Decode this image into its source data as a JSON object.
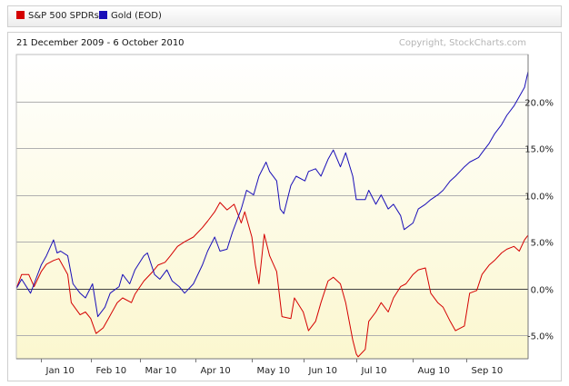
{
  "legend": {
    "items": [
      {
        "label": "S&P 500 SPDRs",
        "color": "#d40000"
      },
      {
        "label": "Gold (EOD)",
        "color": "#1a0fb8"
      }
    ]
  },
  "chart_data": {
    "type": "line",
    "subtitle": "21 December 2009 - 6 October 2010",
    "copyright": "Copyright, StockCharts.com",
    "ylim": [
      -7.5,
      25
    ],
    "grid": true,
    "legend_position": "top-left",
    "y_ticks": [
      {
        "value": 20,
        "label": "20.0%"
      },
      {
        "value": 15,
        "label": "15.0%"
      },
      {
        "value": 10,
        "label": "10.0%"
      },
      {
        "value": 5,
        "label": "5.0%"
      },
      {
        "value": 0,
        "label": "0.0%"
      },
      {
        "value": -5,
        "label": "-5.0%"
      }
    ],
    "x_range": [
      "2009-12-21",
      "2010-10-06"
    ],
    "x_ticks": [
      {
        "date": "2010-01-04",
        "label": "Jan 10"
      },
      {
        "date": "2010-02-01",
        "label": "Feb 10"
      },
      {
        "date": "2010-03-01",
        "label": "Mar 10"
      },
      {
        "date": "2010-04-01",
        "label": "Apr 10"
      },
      {
        "date": "2010-05-03",
        "label": "May 10"
      },
      {
        "date": "2010-06-01",
        "label": "Jun 10"
      },
      {
        "date": "2010-07-01",
        "label": "Jul 10"
      },
      {
        "date": "2010-08-02",
        "label": "Aug 10"
      },
      {
        "date": "2010-09-01",
        "label": "Sep 10"
      }
    ],
    "series": [
      {
        "name": "S&P 500 SPDRs",
        "color": "#d40000",
        "points": [
          [
            "2009-12-21",
            0.0
          ],
          [
            "2009-12-24",
            1.5
          ],
          [
            "2009-12-28",
            1.5
          ],
          [
            "2009-12-31",
            0.2
          ],
          [
            "2010-01-04",
            1.8
          ],
          [
            "2010-01-07",
            2.6
          ],
          [
            "2010-01-11",
            3.0
          ],
          [
            "2010-01-14",
            3.2
          ],
          [
            "2010-01-19",
            1.5
          ],
          [
            "2010-01-21",
            -1.5
          ],
          [
            "2010-01-26",
            -2.8
          ],
          [
            "2010-01-29",
            -2.5
          ],
          [
            "2010-02-01",
            -3.2
          ],
          [
            "2010-02-04",
            -4.8
          ],
          [
            "2010-02-08",
            -4.2
          ],
          [
            "2010-02-11",
            -3.2
          ],
          [
            "2010-02-16",
            -1.5
          ],
          [
            "2010-02-19",
            -1.0
          ],
          [
            "2010-02-24",
            -1.5
          ],
          [
            "2010-02-26",
            -0.6
          ],
          [
            "2010-03-03",
            0.8
          ],
          [
            "2010-03-08",
            1.8
          ],
          [
            "2010-03-11",
            2.5
          ],
          [
            "2010-03-15",
            2.8
          ],
          [
            "2010-03-18",
            3.5
          ],
          [
            "2010-03-22",
            4.5
          ],
          [
            "2010-03-26",
            5.0
          ],
          [
            "2010-03-31",
            5.5
          ],
          [
            "2010-04-05",
            6.5
          ],
          [
            "2010-04-08",
            7.2
          ],
          [
            "2010-04-12",
            8.2
          ],
          [
            "2010-04-15",
            9.2
          ],
          [
            "2010-04-19",
            8.4
          ],
          [
            "2010-04-23",
            9.0
          ],
          [
            "2010-04-27",
            7.0
          ],
          [
            "2010-04-29",
            8.2
          ],
          [
            "2010-05-03",
            5.5
          ],
          [
            "2010-05-05",
            2.5
          ],
          [
            "2010-05-07",
            0.5
          ],
          [
            "2010-05-10",
            5.8
          ],
          [
            "2010-05-13",
            3.5
          ],
          [
            "2010-05-17",
            1.8
          ],
          [
            "2010-05-20",
            -3.0
          ],
          [
            "2010-05-25",
            -3.2
          ],
          [
            "2010-05-27",
            -1.0
          ],
          [
            "2010-06-01",
            -2.5
          ],
          [
            "2010-06-04",
            -4.5
          ],
          [
            "2010-06-08",
            -3.5
          ],
          [
            "2010-06-11",
            -1.5
          ],
          [
            "2010-06-15",
            0.8
          ],
          [
            "2010-06-18",
            1.2
          ],
          [
            "2010-06-22",
            0.5
          ],
          [
            "2010-06-25",
            -1.5
          ],
          [
            "2010-06-29",
            -5.5
          ],
          [
            "2010-07-01",
            -7.0
          ],
          [
            "2010-07-02",
            -7.3
          ],
          [
            "2010-07-06",
            -6.5
          ],
          [
            "2010-07-08",
            -3.5
          ],
          [
            "2010-07-12",
            -2.5
          ],
          [
            "2010-07-15",
            -1.5
          ],
          [
            "2010-07-19",
            -2.5
          ],
          [
            "2010-07-22",
            -1.0
          ],
          [
            "2010-07-26",
            0.2
          ],
          [
            "2010-07-29",
            0.5
          ],
          [
            "2010-08-02",
            1.5
          ],
          [
            "2010-08-05",
            2.0
          ],
          [
            "2010-08-09",
            2.2
          ],
          [
            "2010-08-12",
            -0.5
          ],
          [
            "2010-08-16",
            -1.5
          ],
          [
            "2010-08-19",
            -2.0
          ],
          [
            "2010-08-23",
            -3.5
          ],
          [
            "2010-08-26",
            -4.5
          ],
          [
            "2010-08-31",
            -4.0
          ],
          [
            "2010-09-03",
            -0.5
          ],
          [
            "2010-09-07",
            -0.2
          ],
          [
            "2010-09-10",
            1.5
          ],
          [
            "2010-09-14",
            2.5
          ],
          [
            "2010-09-17",
            3.0
          ],
          [
            "2010-09-21",
            3.8
          ],
          [
            "2010-09-24",
            4.2
          ],
          [
            "2010-09-28",
            4.5
          ],
          [
            "2010-10-01",
            4.0
          ],
          [
            "2010-10-04",
            5.2
          ],
          [
            "2010-10-06",
            5.7
          ]
        ]
      },
      {
        "name": "Gold (EOD)",
        "color": "#1a0fb8",
        "points": [
          [
            "2009-12-21",
            0.0
          ],
          [
            "2009-12-24",
            1.0
          ],
          [
            "2009-12-29",
            -0.5
          ],
          [
            "2009-12-31",
            0.5
          ],
          [
            "2010-01-04",
            2.5
          ],
          [
            "2010-01-07",
            3.5
          ],
          [
            "2010-01-11",
            5.2
          ],
          [
            "2010-01-13",
            3.8
          ],
          [
            "2010-01-15",
            4.0
          ],
          [
            "2010-01-19",
            3.5
          ],
          [
            "2010-01-22",
            0.5
          ],
          [
            "2010-01-26",
            -0.5
          ],
          [
            "2010-01-29",
            -1.0
          ],
          [
            "2010-02-02",
            0.5
          ],
          [
            "2010-02-05",
            -3.0
          ],
          [
            "2010-02-09",
            -2.0
          ],
          [
            "2010-02-12",
            -0.5
          ],
          [
            "2010-02-17",
            0.2
          ],
          [
            "2010-02-19",
            1.5
          ],
          [
            "2010-02-23",
            0.5
          ],
          [
            "2010-02-26",
            2.0
          ],
          [
            "2010-03-03",
            3.5
          ],
          [
            "2010-03-05",
            3.8
          ],
          [
            "2010-03-09",
            1.5
          ],
          [
            "2010-03-12",
            1.0
          ],
          [
            "2010-03-16",
            2.0
          ],
          [
            "2010-03-19",
            0.8
          ],
          [
            "2010-03-23",
            0.2
          ],
          [
            "2010-03-26",
            -0.5
          ],
          [
            "2010-03-31",
            0.5
          ],
          [
            "2010-04-05",
            2.5
          ],
          [
            "2010-04-08",
            4.0
          ],
          [
            "2010-04-12",
            5.5
          ],
          [
            "2010-04-15",
            4.0
          ],
          [
            "2010-04-19",
            4.2
          ],
          [
            "2010-04-22",
            6.0
          ],
          [
            "2010-04-27",
            8.5
          ],
          [
            "2010-04-30",
            10.5
          ],
          [
            "2010-05-04",
            10.0
          ],
          [
            "2010-05-07",
            12.0
          ],
          [
            "2010-05-11",
            13.5
          ],
          [
            "2010-05-13",
            12.5
          ],
          [
            "2010-05-17",
            11.5
          ],
          [
            "2010-05-19",
            8.5
          ],
          [
            "2010-05-21",
            8.0
          ],
          [
            "2010-05-25",
            11.0
          ],
          [
            "2010-05-28",
            12.0
          ],
          [
            "2010-06-02",
            11.5
          ],
          [
            "2010-06-04",
            12.5
          ],
          [
            "2010-06-08",
            12.8
          ],
          [
            "2010-06-11",
            12.0
          ],
          [
            "2010-06-15",
            13.8
          ],
          [
            "2010-06-18",
            14.8
          ],
          [
            "2010-06-22",
            13.0
          ],
          [
            "2010-06-25",
            14.5
          ],
          [
            "2010-06-29",
            12.0
          ],
          [
            "2010-07-01",
            9.5
          ],
          [
            "2010-07-06",
            9.5
          ],
          [
            "2010-07-08",
            10.5
          ],
          [
            "2010-07-12",
            9.0
          ],
          [
            "2010-07-15",
            10.0
          ],
          [
            "2010-07-19",
            8.5
          ],
          [
            "2010-07-22",
            9.0
          ],
          [
            "2010-07-26",
            7.8
          ],
          [
            "2010-07-28",
            6.3
          ],
          [
            "2010-08-02",
            7.0
          ],
          [
            "2010-08-05",
            8.5
          ],
          [
            "2010-08-09",
            9.0
          ],
          [
            "2010-08-12",
            9.5
          ],
          [
            "2010-08-16",
            10.0
          ],
          [
            "2010-08-19",
            10.5
          ],
          [
            "2010-08-23",
            11.5
          ],
          [
            "2010-08-26",
            12.0
          ],
          [
            "2010-08-31",
            13.0
          ],
          [
            "2010-09-03",
            13.5
          ],
          [
            "2010-09-08",
            14.0
          ],
          [
            "2010-09-10",
            14.5
          ],
          [
            "2010-09-14",
            15.5
          ],
          [
            "2010-09-17",
            16.5
          ],
          [
            "2010-09-21",
            17.5
          ],
          [
            "2010-09-24",
            18.5
          ],
          [
            "2010-09-28",
            19.5
          ],
          [
            "2010-10-01",
            20.5
          ],
          [
            "2010-10-04",
            21.5
          ],
          [
            "2010-10-06",
            23.2
          ]
        ]
      }
    ]
  }
}
